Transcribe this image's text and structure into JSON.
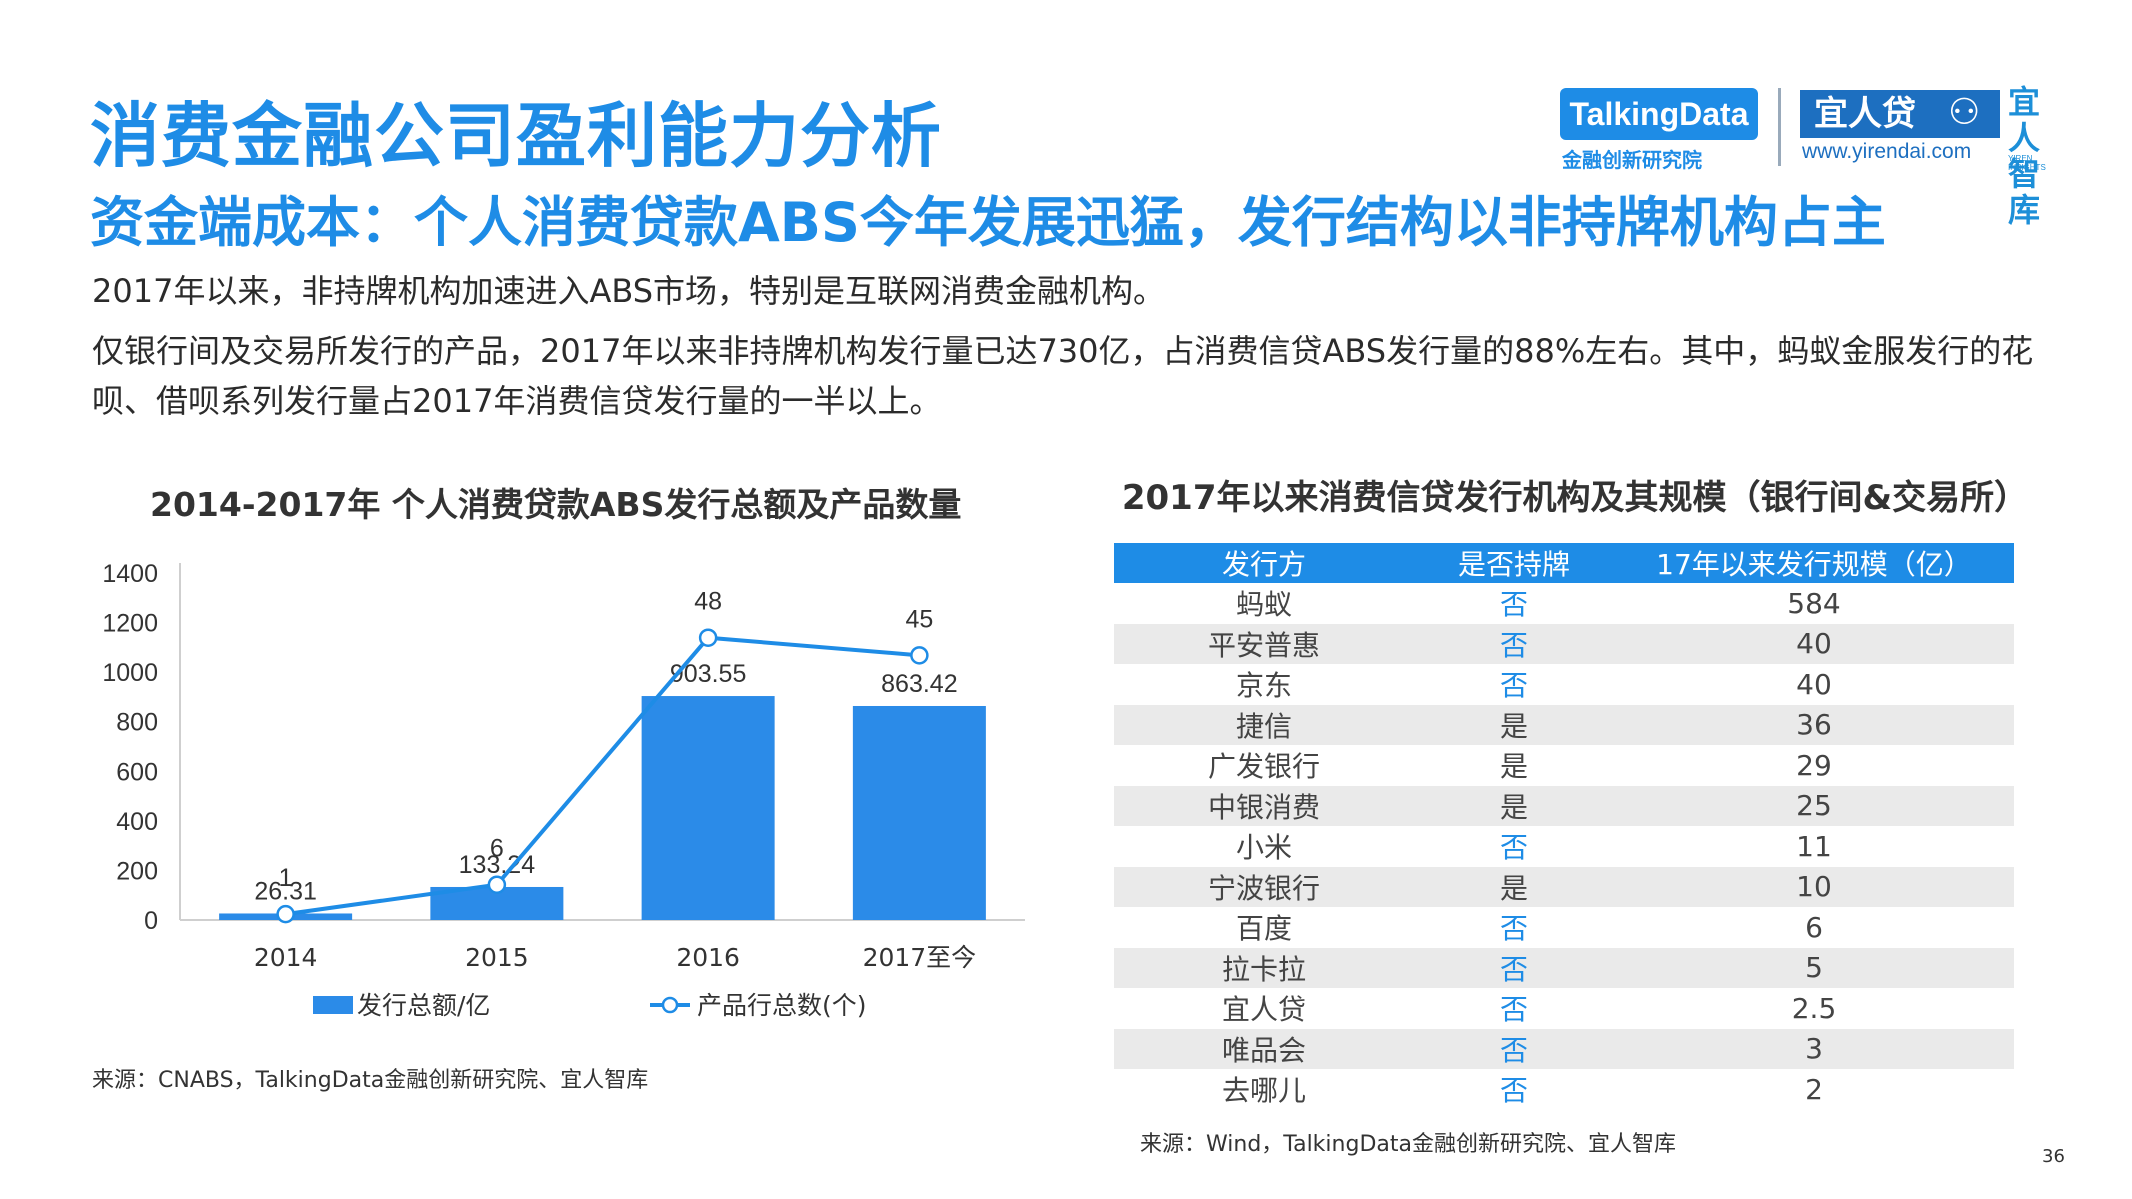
{
  "header": {
    "title": "消费金融公司盈利能力分析",
    "subtitle": "资金端成本：个人消费贷款ABS今年发展迅猛，发行结构以非持牌机构占主"
  },
  "paragraphs": {
    "p1": "2017年以来，非持牌机构加速进入ABS市场，特别是互联网消费金融机构。",
    "p2": "仅银行间及交易所发行的产品，2017年以来非持牌机构发行量已达730亿，占消费信贷ABS发行量的88%左右。其中，蚂蚁金服发行的花呗、借呗系列发行量占2017年消费信贷发行量的一半以上。"
  },
  "logos": {
    "talkingdata": "TalkingData",
    "talkingdata_sub": "金融创新研究院",
    "yirendai": "宜人贷",
    "yirendai_url": "www.yirendai.com",
    "zhiku": "宜人智库",
    "zhiku_sub": "YIREN INSIGHTS"
  },
  "colors": {
    "accent": "#1e8ce6",
    "bar": "#2b8be8",
    "row_alt": "#eaeaea"
  },
  "chart_data": {
    "type": "bar",
    "title": "2014-2017年 个人消费贷款ABS发行总额及产品数量",
    "categories": [
      "2014",
      "2015",
      "2016",
      "2017至今"
    ],
    "series": [
      {
        "name": "发行总额/亿",
        "kind": "bar",
        "values": [
          26.31,
          133.24,
          903.55,
          863.42
        ],
        "labels": [
          "26.31",
          "133.24",
          "903.55",
          "863.42"
        ]
      },
      {
        "name": "产品行总数(个)",
        "kind": "line",
        "values": [
          1,
          6,
          48,
          45
        ],
        "labels": [
          "1",
          "6",
          "48",
          "45"
        ]
      }
    ],
    "ylim": [
      0,
      1400
    ],
    "yticks": [
      "0",
      "200",
      "400",
      "600",
      "800",
      "1000",
      "1200",
      "1400"
    ],
    "legend_position": "bottom",
    "grid": false
  },
  "source_left": "来源：CNABS，TalkingData金融创新研究院、宜人智库",
  "table": {
    "title": "2017年以来消费信贷发行机构及其规模（银行间&交易所）",
    "headers": [
      "发行方",
      "是否持牌",
      "17年以来发行规模（亿）"
    ],
    "rows": [
      {
        "issuer": "蚂蚁",
        "licensed": "否",
        "scale": "584"
      },
      {
        "issuer": "平安普惠",
        "licensed": "否",
        "scale": "40"
      },
      {
        "issuer": "京东",
        "licensed": "否",
        "scale": "40"
      },
      {
        "issuer": "捷信",
        "licensed": "是",
        "scale": "36"
      },
      {
        "issuer": "广发银行",
        "licensed": "是",
        "scale": "29"
      },
      {
        "issuer": "中银消费",
        "licensed": "是",
        "scale": "25"
      },
      {
        "issuer": "小米",
        "licensed": "否",
        "scale": "11"
      },
      {
        "issuer": "宁波银行",
        "licensed": "是",
        "scale": "10"
      },
      {
        "issuer": "百度",
        "licensed": "否",
        "scale": "6"
      },
      {
        "issuer": "拉卡拉",
        "licensed": "否",
        "scale": "5"
      },
      {
        "issuer": "宜人贷",
        "licensed": "否",
        "scale": "2.5"
      },
      {
        "issuer": "唯品会",
        "licensed": "否",
        "scale": "3"
      },
      {
        "issuer": "去哪儿",
        "licensed": "否",
        "scale": "2"
      }
    ]
  },
  "source_right": "来源：Wind，TalkingData金融创新研究院、宜人智库",
  "page_number": "36"
}
